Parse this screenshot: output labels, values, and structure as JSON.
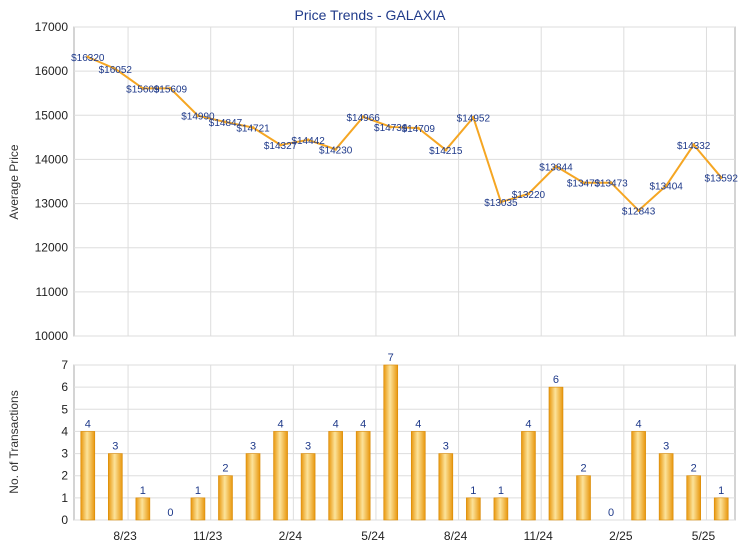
{
  "chart_data": [
    {
      "type": "line",
      "title": "Price Trends - GALAXIA",
      "xlabel": "",
      "ylabel": "Average Price",
      "ylim": [
        10000,
        17000
      ],
      "yticks": [
        10000,
        11000,
        12000,
        13000,
        14000,
        15000,
        16000,
        17000
      ],
      "grid": true,
      "color": "#f5a623",
      "series": [
        {
          "values": [
            16320,
            16052,
            15609,
            15609,
            14990,
            14847,
            14721,
            14327,
            14442,
            14230,
            14966,
            14736,
            14709,
            14215,
            14952,
            13035,
            13220,
            13844,
            13473,
            13473,
            12843,
            13404,
            14332,
            13592
          ],
          "labels": [
            "$16320",
            "$16052",
            "$15609",
            "$15609",
            "$14990",
            "$14847",
            "$14721",
            "$14327",
            "$14442",
            "$14230",
            "$14966",
            "$14736",
            "$14709",
            "$14215",
            "$14952",
            "$13035",
            "$13220",
            "$13844",
            "$13473",
            "$13473",
            "$12843",
            "$13404",
            "$14332",
            "$13592"
          ]
        }
      ]
    },
    {
      "type": "bar",
      "xlabel": "",
      "ylabel": "No. of Transactions",
      "ylim": [
        0,
        7
      ],
      "yticks": [
        0,
        1,
        2,
        3,
        4,
        5,
        6,
        7
      ],
      "grid": true,
      "color": "#f0a818",
      "x_tick_labels": [
        "8/23",
        "11/23",
        "2/24",
        "5/24",
        "8/24",
        "11/24",
        "2/25",
        "5/25"
      ],
      "values": [
        4,
        3,
        1,
        0,
        1,
        2,
        3,
        4,
        3,
        4,
        4,
        7,
        4,
        3,
        1,
        1,
        4,
        6,
        2,
        0,
        4,
        3,
        2,
        1
      ]
    }
  ]
}
